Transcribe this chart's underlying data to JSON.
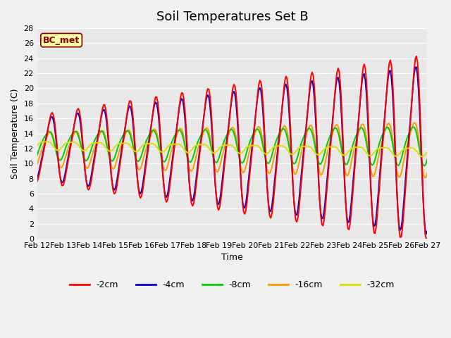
{
  "title": "Soil Temperatures Set B",
  "xlabel": "Time",
  "ylabel": "Soil Temperature (C)",
  "annotation": "BC_met",
  "ylim": [
    0,
    28
  ],
  "legend_labels": [
    "-2cm",
    "-4cm",
    "-8cm",
    "-16cm",
    "-32cm"
  ],
  "colors": {
    "-2cm": "#ff0000",
    "-4cm": "#0000cc",
    "-8cm": "#00cc00",
    "-16cm": "#ff9900",
    "-32cm": "#dddd00"
  },
  "xtick_labels": [
    "Feb 12",
    "Feb 13",
    "Feb 14",
    "Feb 15",
    "Feb 16",
    "Feb 17",
    "Feb 18",
    "Feb 19",
    "Feb 20",
    "Feb 21",
    "Feb 22",
    "Feb 23",
    "Feb 24",
    "Feb 25",
    "Feb 26",
    "Feb 27"
  ],
  "ytick_values": [
    0,
    2,
    4,
    6,
    8,
    10,
    12,
    14,
    16,
    18,
    20,
    22,
    24,
    26,
    28
  ],
  "ytick_labels": [
    "0",
    "2",
    "4",
    "6",
    "8",
    "10",
    "12",
    "14",
    "16",
    "18",
    "20",
    "22",
    "24",
    "26",
    "28"
  ],
  "facecolor": "#e8e8e8",
  "fig_facecolor": "#f0f0f0",
  "grid_color": "#ffffff",
  "title_fontsize": 13,
  "label_fontsize": 9,
  "tick_fontsize": 8,
  "legend_fontsize": 9,
  "line_width": 1.4,
  "n_days": 15,
  "pts_per_day": 24
}
